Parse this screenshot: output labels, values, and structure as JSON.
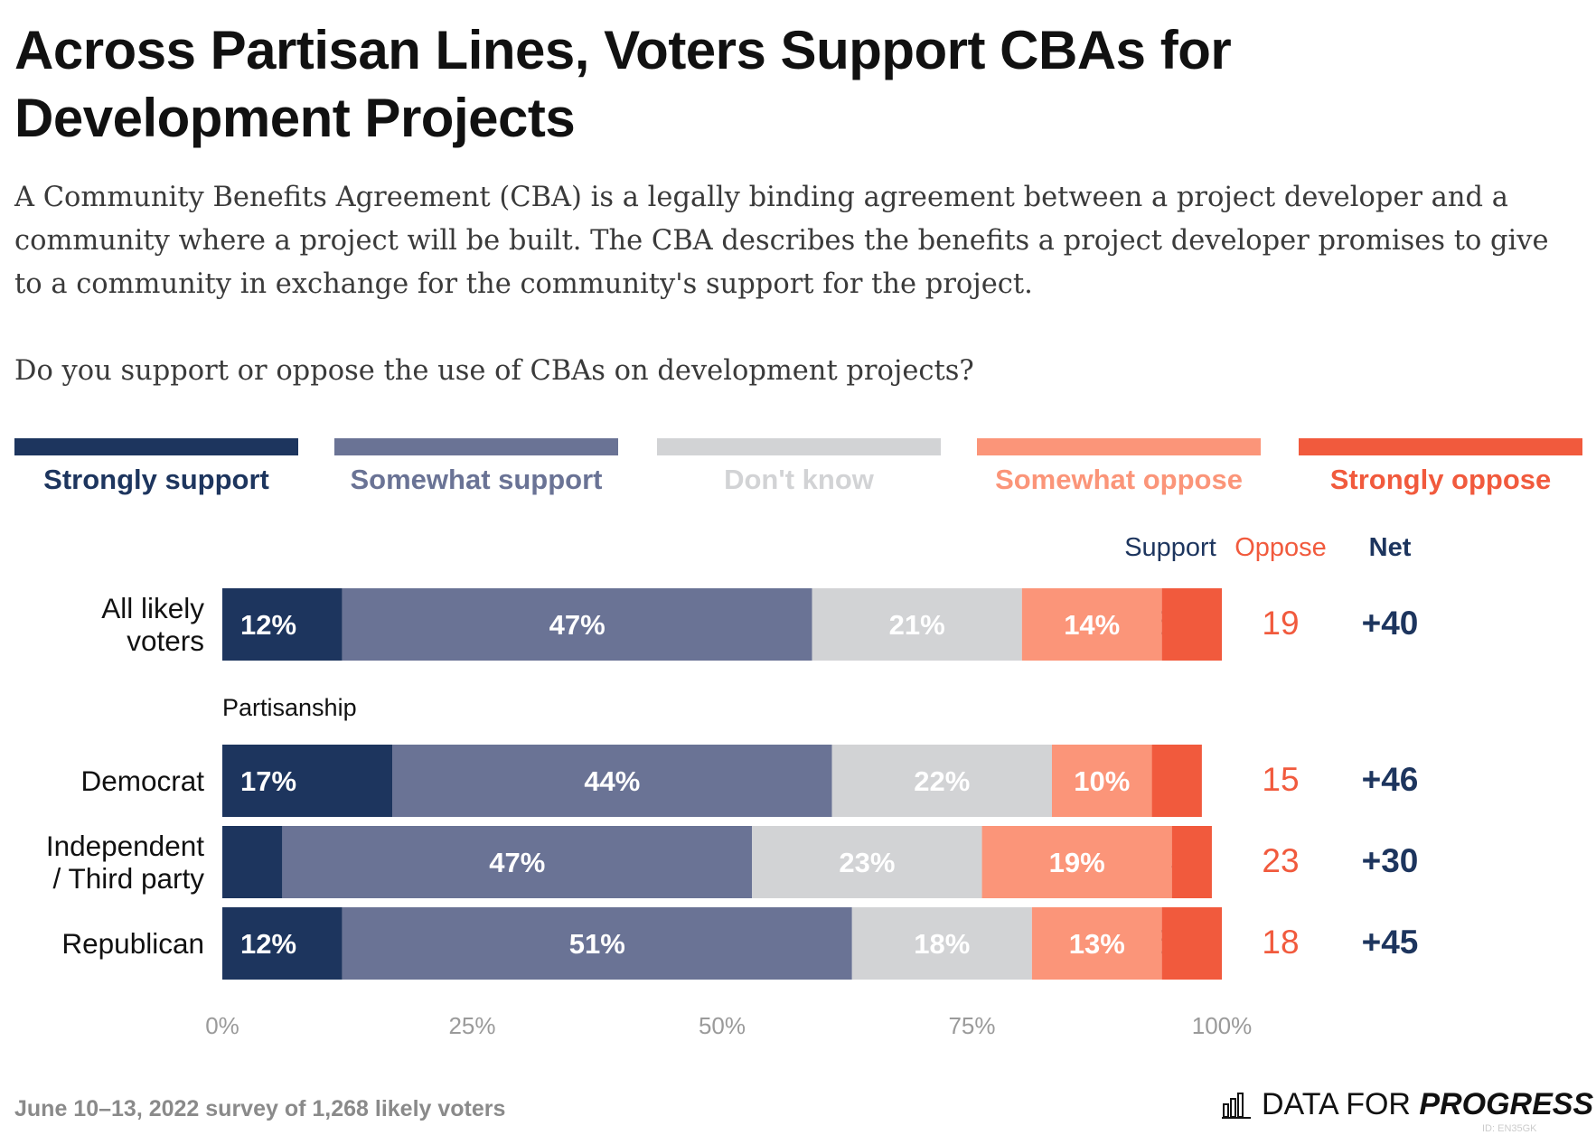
{
  "title": "Across Partisan Lines, Voters Support CBAs for Development Projects",
  "subtitle": "A Community Benefits Agreement (CBA) is a legally binding agreement between a project developer and a community where a project will be built. The CBA describes the benefits a project developer promises to give to a community in exchange for the community's support for the project.\n\nDo you support or oppose the use of CBAs on development projects?",
  "legend": [
    {
      "label": "Strongly support",
      "color": "#1d355e",
      "text_color": "#1d355e"
    },
    {
      "label": "Somewhat support",
      "color": "#6a7395",
      "text_color": "#6a7395"
    },
    {
      "label": "Don't know",
      "color": "#d2d3d5",
      "text_color": "#d2d3d5"
    },
    {
      "label": "Somewhat oppose",
      "color": "#fb9579",
      "text_color": "#fb9579"
    },
    {
      "label": "Strongly oppose",
      "color": "#f15a3d",
      "text_color": "#f15a3d"
    }
  ],
  "columns": {
    "support": "Support",
    "oppose": "Oppose",
    "net": "Net"
  },
  "group_label": "Partisanship",
  "chart_data": {
    "type": "bar",
    "orientation": "horizontal",
    "stacked": true,
    "categories": [
      "All likely\nvoters",
      "Democrat",
      "Independent\n/ Third party",
      "Republican"
    ],
    "series": [
      {
        "name": "Strongly support",
        "values": [
          12,
          17,
          6,
          12
        ],
        "color": "#1d355e"
      },
      {
        "name": "Somewhat support",
        "values": [
          47,
          44,
          47,
          51
        ],
        "color": "#6a7395"
      },
      {
        "name": "Don't know",
        "values": [
          21,
          22,
          23,
          18
        ],
        "color": "#d2d3d5"
      },
      {
        "name": "Somewhat oppose",
        "values": [
          14,
          10,
          19,
          13
        ],
        "color": "#fb9579"
      },
      {
        "name": "Strongly oppose",
        "values": [
          6,
          5,
          4,
          6
        ],
        "color": "#f15a3d"
      }
    ],
    "segment_labels": [
      [
        "12%",
        "47%",
        "21%",
        "14%",
        ""
      ],
      [
        "17%",
        "44%",
        "22%",
        "10%",
        ""
      ],
      [
        "",
        "47%",
        "23%",
        "19%",
        ""
      ],
      [
        "12%",
        "51%",
        "18%",
        "13%",
        ""
      ]
    ],
    "support": [
      59,
      61,
      53,
      63
    ],
    "oppose": [
      19,
      15,
      23,
      18
    ],
    "net": [
      "+40",
      "+46",
      "+30",
      "+45"
    ],
    "xlim": [
      0,
      100
    ],
    "xticks": [
      "0%",
      "25%",
      "50%",
      "75%",
      "100%"
    ],
    "xtick_values": [
      0,
      25,
      50,
      75,
      100
    ],
    "grid": false
  },
  "footer": "June 10–13, 2022 survey of 1,268 likely voters",
  "brand": {
    "prefix": "DATA FOR ",
    "strong": "PROGRESS",
    "logo_icon": "bar-chart-logo-icon"
  },
  "id_tag": "ID: EN35GK"
}
